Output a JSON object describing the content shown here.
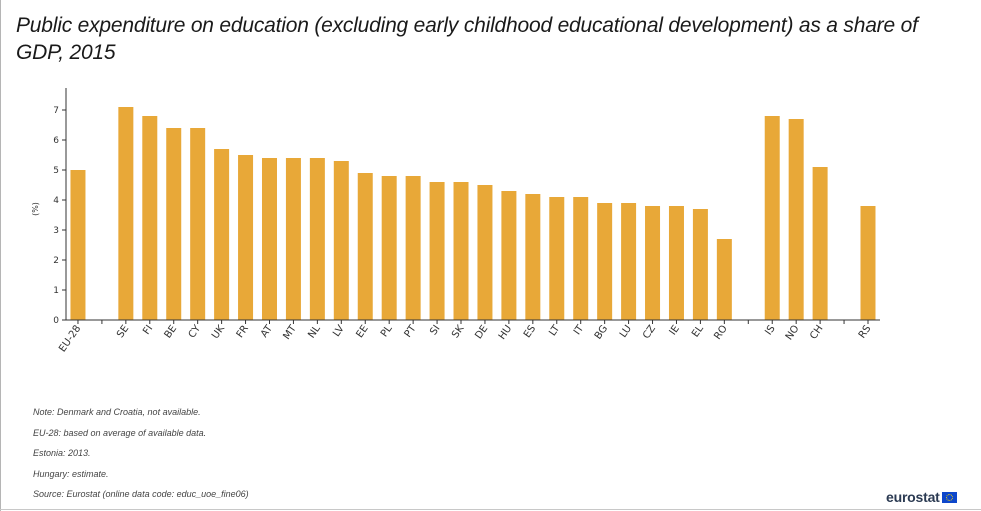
{
  "chart_data": {
    "type": "bar",
    "title": "Public expenditure on education (excluding early childhood educational development) as a share of GDP, 2015",
    "xlabel": "",
    "ylabel": "(%)",
    "ylim": [
      0,
      7.5
    ],
    "yticks": [
      0,
      1,
      2,
      3,
      4,
      5,
      6,
      7
    ],
    "bar_color": "#e8a838",
    "categories": [
      "EU-28",
      "",
      "SE",
      "FI",
      "BE",
      "CY",
      "UK",
      "FR",
      "AT",
      "MT",
      "NL",
      "LV",
      "EE",
      "PL",
      "PT",
      "SI",
      "SK",
      "DE",
      "HU",
      "ES",
      "LT",
      "IT",
      "BG",
      "LU",
      "CZ",
      "IE",
      "EL",
      "RO",
      "",
      "IS",
      "NO",
      "CH",
      "",
      "RS"
    ],
    "values": [
      5.0,
      null,
      7.1,
      6.8,
      6.4,
      6.4,
      5.7,
      5.5,
      5.4,
      5.4,
      5.4,
      5.3,
      4.9,
      4.8,
      4.8,
      4.6,
      4.6,
      4.5,
      4.3,
      4.2,
      4.1,
      4.1,
      3.9,
      3.9,
      3.8,
      3.8,
      3.7,
      2.7,
      null,
      6.8,
      6.7,
      5.1,
      null,
      3.8
    ]
  },
  "notes": [
    "Note: Denmark and Croatia, not available.",
    "EU-28: based on average of available data.",
    "Estonia: 2013.",
    "Hungary: estimate.",
    "Source: Eurostat (online data code: educ_uoe_fine06)"
  ],
  "logo": {
    "text": "eurostat",
    "icon": "eu-flag-icon"
  }
}
